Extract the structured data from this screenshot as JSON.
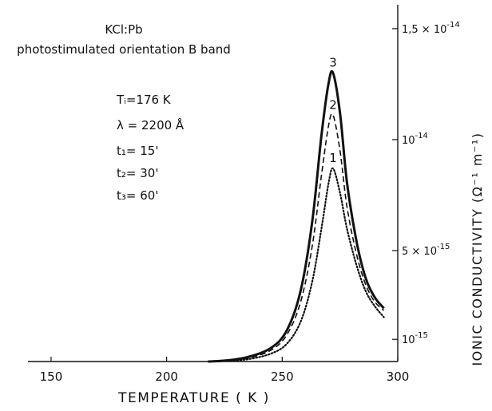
{
  "chart_data": {
    "type": "line",
    "title": "KCl:Pb",
    "subtitle": "photostimulated orientation B band",
    "xlabel": "TEMPERATURE ( K )",
    "ylabel": "IONIC CONDUCTIVITY (Ω⁻¹ m⁻¹)",
    "xlim": [
      140,
      300
    ],
    "ylim": [
      0,
      1.55e-14
    ],
    "x_ticks": [
      150,
      200,
      250,
      300
    ],
    "x_tick_labels": [
      "150",
      "200",
      "250",
      "300"
    ],
    "y_ticks": [
      {
        "value": 1e-15,
        "mantissa": "",
        "exp": "-15"
      },
      {
        "value": 5e-15,
        "mantissa": "5",
        "exp": "-15"
      },
      {
        "value": 1e-14,
        "mantissa": "",
        "exp": "-14"
      },
      {
        "value": 1.5e-14,
        "mantissa": "1,5",
        "exp": "-14"
      }
    ],
    "params": [
      "Tᵢ=176 K",
      "λ = 2200 Å",
      "t₁= 15'",
      "t₂= 30'",
      "t₃= 60'"
    ],
    "grid": false,
    "series": [
      {
        "name": "1",
        "style": "dotted",
        "x": [
          218,
          225,
          235,
          245,
          252,
          258,
          263,
          267,
          270,
          272,
          275,
          278,
          282,
          286,
          290,
          294
        ],
        "y": [
          0.0,
          2e-17,
          1e-16,
          3.5e-16,
          8e-16,
          1.8e-15,
          3.6e-15,
          6e-15,
          8e-15,
          8.7e-15,
          7.6e-15,
          6e-15,
          4.4e-15,
          3.2e-15,
          2.5e-15,
          2e-15
        ]
      },
      {
        "name": "2",
        "style": "dashed",
        "x": [
          218,
          225,
          235,
          245,
          252,
          258,
          263,
          267,
          270,
          272,
          275,
          278,
          282,
          286,
          290,
          294
        ],
        "y": [
          0.0,
          3e-17,
          1.5e-16,
          5e-16,
          1.2e-15,
          2.7e-15,
          5.2e-15,
          8.4e-15,
          1.06e-14,
          1.11e-14,
          9.5e-15,
          7e-15,
          4.9e-15,
          3.5e-15,
          2.7e-15,
          2.3e-15
        ]
      },
      {
        "name": "3",
        "style": "solid",
        "x": [
          218,
          225,
          235,
          245,
          252,
          258,
          263,
          267,
          270,
          272,
          275,
          278,
          282,
          286,
          290,
          294
        ],
        "y": [
          0.0,
          4e-17,
          2e-16,
          6e-16,
          1.4e-15,
          3.2e-15,
          6.3e-15,
          1.02e-14,
          1.25e-14,
          1.3e-14,
          1.12e-14,
          8.1e-15,
          5.5e-15,
          3.8e-15,
          2.9e-15,
          2.4e-15
        ]
      }
    ]
  }
}
